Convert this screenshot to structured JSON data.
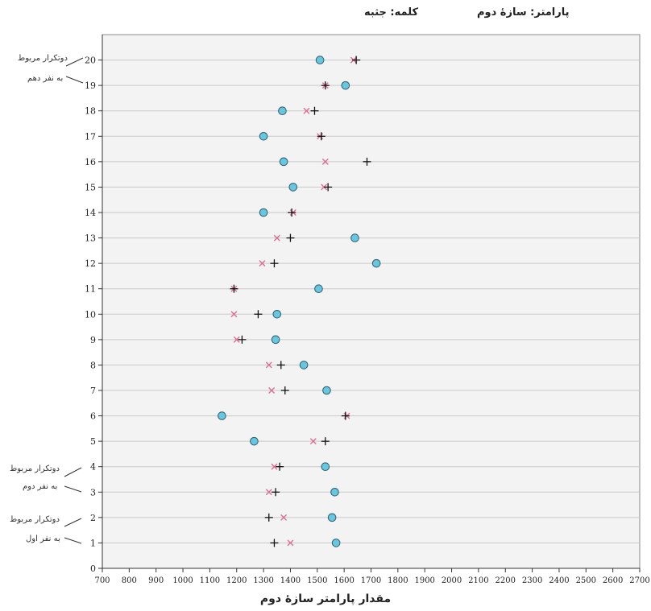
{
  "header": {
    "parameter_text": "پارامتر: سازهٔ دوم",
    "word_text": "کلمه: جثبه"
  },
  "annotations": [
    {
      "line1": "دوتکرار مربوط",
      "line2": "به نفر دهم"
    },
    {
      "line1": "دوتکرار مربوط",
      "line2": "به نفر دوم"
    },
    {
      "line1": "دوتکرار مربوط",
      "line2": "به نفر اول"
    }
  ],
  "chart_data": {
    "type": "scatter",
    "xlabel": "مقدار پارامتر سازهٔ دوم",
    "xlim": [
      700,
      2700
    ],
    "x_ticks": [
      700,
      800,
      900,
      1000,
      1100,
      1200,
      1300,
      1400,
      1500,
      1600,
      1700,
      1800,
      1900,
      2000,
      2100,
      2200,
      2300,
      2400,
      2500,
      2600,
      2700
    ],
    "ylim": [
      0,
      21
    ],
    "y_ticks": [
      0,
      1,
      2,
      3,
      4,
      5,
      6,
      7,
      8,
      9,
      10,
      11,
      12,
      13,
      14,
      15,
      16,
      17,
      18,
      19,
      20
    ],
    "grid": true,
    "colors": {
      "circle_fill": "#6cc5dd",
      "circle_stroke": "#2b5f70",
      "cross": "#d9708f",
      "plus": "#111111",
      "grid": "#c9c9c9",
      "background": "#f3f3f3"
    },
    "rows": [
      {
        "y": 1,
        "circle": 1570,
        "cross": 1400,
        "plus": 1340
      },
      {
        "y": 2,
        "circle": 1555,
        "cross": 1375,
        "plus": 1320
      },
      {
        "y": 3,
        "circle": 1565,
        "cross": 1320,
        "plus": 1345
      },
      {
        "y": 4,
        "circle": 1530,
        "cross": 1340,
        "plus": 1360
      },
      {
        "y": 5,
        "circle": 1265,
        "cross": 1485,
        "plus": 1530
      },
      {
        "y": 6,
        "circle": 1145,
        "cross": 1610,
        "plus": 1605
      },
      {
        "y": 7,
        "circle": 1535,
        "cross": 1330,
        "plus": 1380
      },
      {
        "y": 8,
        "circle": 1450,
        "cross": 1320,
        "plus": 1365
      },
      {
        "y": 9,
        "circle": 1345,
        "cross": 1200,
        "plus": 1220
      },
      {
        "y": 10,
        "circle": 1350,
        "cross": 1190,
        "plus": 1280
      },
      {
        "y": 11,
        "circle": 1505,
        "cross": 1190,
        "plus": 1190
      },
      {
        "y": 12,
        "circle": 1720,
        "cross": 1295,
        "plus": 1340
      },
      {
        "y": 13,
        "circle": 1640,
        "cross": 1350,
        "plus": 1400
      },
      {
        "y": 14,
        "circle": 1300,
        "cross": 1410,
        "plus": 1405
      },
      {
        "y": 15,
        "circle": 1410,
        "cross": 1525,
        "plus": 1540
      },
      {
        "y": 16,
        "circle": 1375,
        "cross": 1530,
        "plus": 1685
      },
      {
        "y": 17,
        "circle": 1300,
        "cross": 1510,
        "plus": 1515
      },
      {
        "y": 18,
        "circle": 1370,
        "cross": 1460,
        "plus": 1490
      },
      {
        "y": 19,
        "circle": 1605,
        "cross": 1530,
        "plus": 1530
      },
      {
        "y": 20,
        "circle": 1510,
        "cross": 1635,
        "plus": 1645
      }
    ]
  }
}
